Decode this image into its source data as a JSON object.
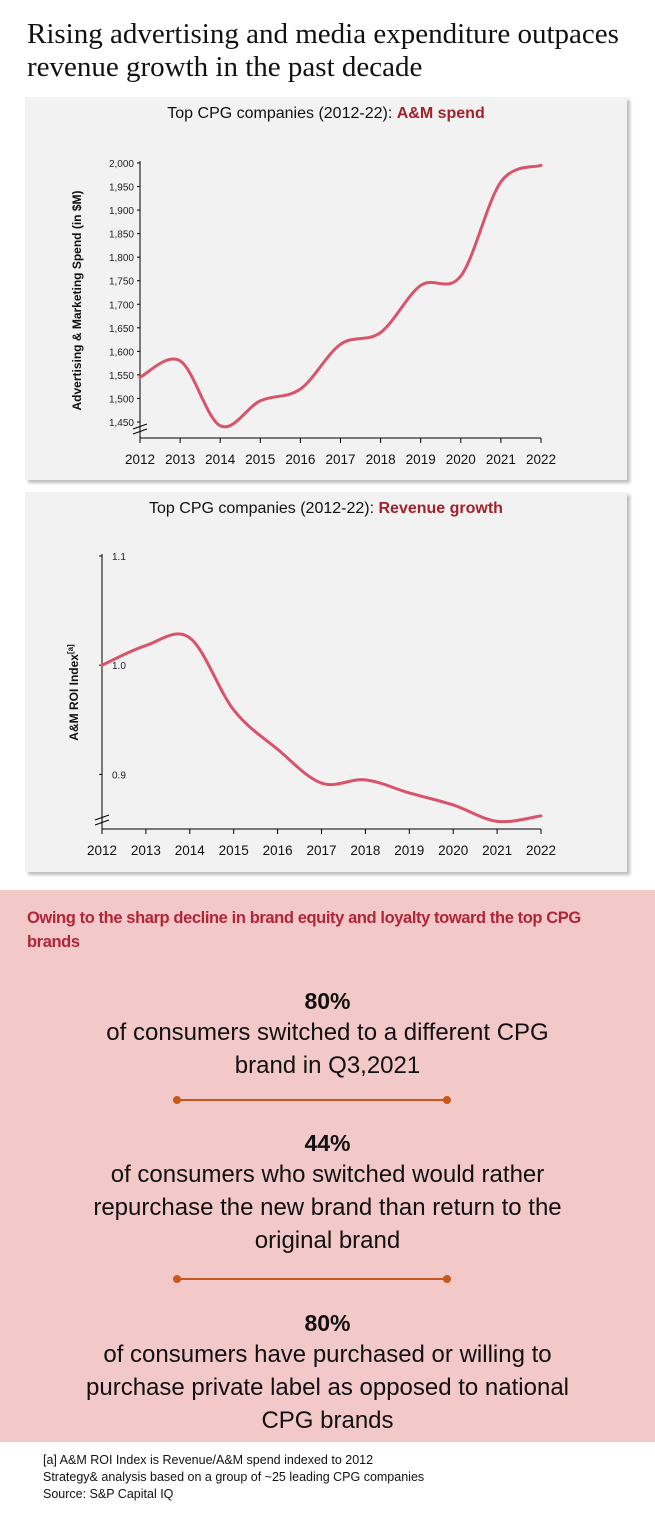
{
  "title": "Rising advertising and media expenditure outpaces revenue growth in the past decade",
  "chart_data": [
    {
      "type": "line",
      "title_prefix": "Top CPG companies (2012-22): ",
      "title_highlight": "A&M spend",
      "xlabel": "",
      "ylabel": "Advertising & Marketing Spend (in $M)",
      "categories": [
        "2012",
        "2013",
        "2014",
        "2015",
        "2016",
        "2017",
        "2018",
        "2019",
        "2020",
        "2021",
        "2022"
      ],
      "values": [
        1545,
        1580,
        1442,
        1495,
        1520,
        1615,
        1640,
        1740,
        1760,
        1960,
        1995
      ],
      "yticks": [
        "1,450",
        "1,500",
        "1,550",
        "1,600",
        "1,650",
        "1,700",
        "1,750",
        "1,800",
        "1,850",
        "1,900",
        "1,950",
        "2,000"
      ],
      "ylim": [
        1416,
        2000
      ],
      "axis_break": true,
      "grid": false,
      "line_color": "#d9536b"
    },
    {
      "type": "line",
      "title_prefix": "Top CPG companies (2012-22): ",
      "title_highlight": "Revenue growth",
      "xlabel": "",
      "ylabel": "A&M ROI Index",
      "ylabel_sup": "[a]",
      "categories": [
        "2012",
        "2013",
        "2014",
        "2015",
        "2016",
        "2017",
        "2018",
        "2019",
        "2020",
        "2021",
        "2022"
      ],
      "values": [
        1.0,
        1.018,
        1.025,
        0.959,
        0.923,
        0.892,
        0.895,
        0.883,
        0.872,
        0.857,
        0.862
      ],
      "yticks": [
        "0.9",
        "1.0",
        "1.1"
      ],
      "ylim": [
        0.85,
        1.1
      ],
      "axis_break": true,
      "grid": false,
      "line_color": "#d9536b"
    }
  ],
  "callout": {
    "lead": "Owing to the sharp decline in brand equity and loyalty toward the top CPG brands",
    "stats": [
      {
        "pct": "80%",
        "text": "of consumers switched to a different CPG brand in Q3,2021"
      },
      {
        "pct": "44%",
        "text": "of consumers who switched would rather repurchase the new brand than return to the original brand"
      },
      {
        "pct": "80%",
        "text": "of consumers have purchased or willing to purchase private label as opposed to national CPG brands"
      }
    ],
    "background": "#f3c8c8",
    "accent": "#b0253a",
    "divider_color": "#c8571c"
  },
  "footnotes": [
    "[a] A&M ROI Index is Revenue/A&M spend indexed to 2012",
    "Strategy& analysis based on a group of ~25 leading CPG companies",
    "Source: S&P Capital IQ"
  ]
}
